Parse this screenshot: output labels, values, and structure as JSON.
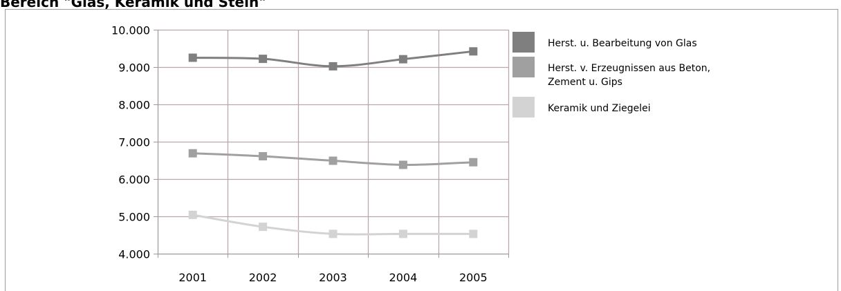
{
  "page": {
    "title": "Bereich \"Glas, Keramik und Stein\""
  },
  "chart_data": {
    "type": "line",
    "title": "",
    "xlabel": "",
    "ylabel": "",
    "categories": [
      "2001",
      "2002",
      "2003",
      "2004",
      "2005"
    ],
    "ylim": [
      4000,
      10000
    ],
    "yticks": [
      4000,
      5000,
      6000,
      7000,
      8000,
      9000,
      10000
    ],
    "ytick_labels": [
      "4.000",
      "5.000",
      "6.000",
      "7.000",
      "8.000",
      "9.000",
      "10.000"
    ],
    "grid": true,
    "legend_position": "right",
    "series": [
      {
        "name": "Herst. u. Bearbeitung von Glas",
        "values": [
          9250,
          9220,
          9020,
          9210,
          9420
        ],
        "color": "#7f7f7f"
      },
      {
        "name": "Herst. v. Erzeugnissen aus Beton, Zement u. Gips",
        "values": [
          6690,
          6610,
          6490,
          6380,
          6450
        ],
        "color": "#a0a0a0"
      },
      {
        "name": "Keramik und Ziegelei",
        "values": [
          5040,
          4720,
          4530,
          4530,
          4530
        ],
        "color": "#d3d3d3"
      }
    ],
    "legend_lines": [
      [
        "Herst. u. Bearbeitung von Glas"
      ],
      [
        "Herst. v. Erzeugnissen aus Beton,",
        "Zement u. Gips"
      ],
      [
        "Keramik und Ziegelei"
      ]
    ]
  }
}
